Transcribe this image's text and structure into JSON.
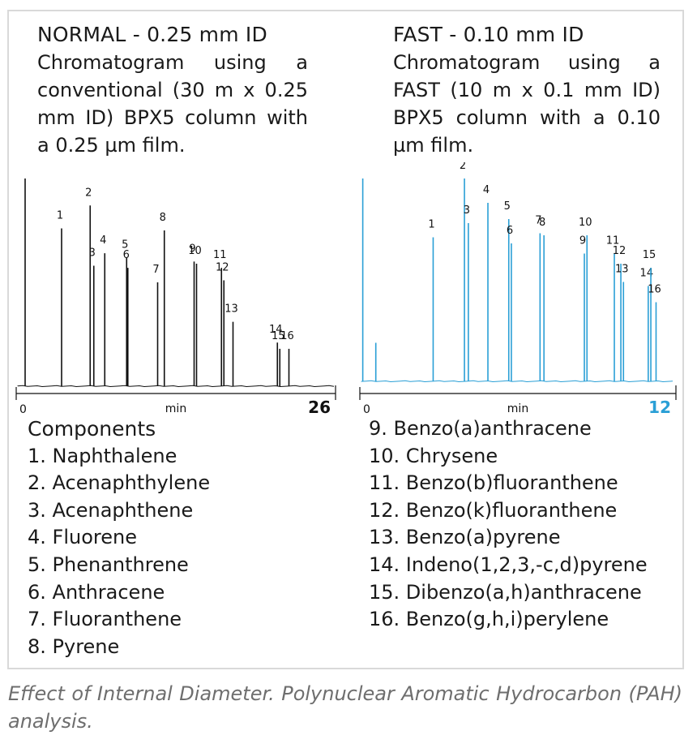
{
  "left_panel": {
    "title": "NORMAL - 0.25 mm ID",
    "description": "Chromatogram using a conventional (30 m x 0.25 mm ID) BPX5 column with a 0.25 µm film.",
    "legend_heading": "Components",
    "legend_items": [
      "1. Naphthalene",
      "2. Acenaphthylene",
      "3. Acenaphthene",
      "4. Fluorene",
      "5. Phenanthrene",
      "6. Anthracene",
      "7. Fluoranthene",
      "8. Pyrene"
    ]
  },
  "right_panel": {
    "title": "FAST - 0.10 mm ID",
    "description": "Chromatogram using a FAST (10 m x 0.1 mm ID) BPX5 column with a 0.10 µm film.",
    "legend_items": [
      "9. Benzo(a)anthracene",
      "10. Chrysene",
      "11. Benzo(b)fluoranthene",
      "12. Benzo(k)fluoranthene",
      "13. Benzo(a)pyrene",
      "14. Indeno(1,2,3,-c,d)pyrene",
      "15. Dibenzo(a,h)anthracene",
      "16. Benzo(g,h,i)perylene"
    ]
  },
  "caption": "Effect of Internal Diameter. Polynuclear Aromatic Hydrocarbon (PAH) analysis.",
  "chart_data": [
    {
      "type": "line",
      "title": "NORMAL - 0.25 mm ID",
      "xlabel": "min",
      "xlim": [
        0,
        26
      ],
      "x_tick_labels": [
        "0",
        "26"
      ],
      "ylim": [
        0,
        100
      ],
      "color": "#111111",
      "end_label_color": "#111111",
      "peaks": [
        {
          "rt": 0.6,
          "height": 100,
          "label": ""
        },
        {
          "rt": 3.6,
          "height": 76,
          "label": "1"
        },
        {
          "rt": 5.95,
          "height": 87,
          "label": "2"
        },
        {
          "rt": 6.25,
          "height": 58,
          "label": "3"
        },
        {
          "rt": 7.15,
          "height": 64,
          "label": "4"
        },
        {
          "rt": 8.95,
          "height": 62,
          "label": "5"
        },
        {
          "rt": 9.05,
          "height": 57,
          "label": "6"
        },
        {
          "rt": 11.5,
          "height": 50,
          "label": "7"
        },
        {
          "rt": 12.05,
          "height": 75,
          "label": "8"
        },
        {
          "rt": 14.5,
          "height": 60,
          "label": "9"
        },
        {
          "rt": 14.7,
          "height": 59,
          "label": "10"
        },
        {
          "rt": 16.75,
          "height": 57,
          "label": "11"
        },
        {
          "rt": 16.95,
          "height": 51,
          "label": "12"
        },
        {
          "rt": 17.7,
          "height": 31,
          "label": "13"
        },
        {
          "rt": 21.35,
          "height": 21,
          "label": "14"
        },
        {
          "rt": 21.55,
          "height": 18,
          "label": "15"
        },
        {
          "rt": 22.3,
          "height": 18,
          "label": "16"
        }
      ]
    },
    {
      "type": "line",
      "title": "FAST - 0.10 mm ID",
      "xlabel": "min",
      "xlim": [
        0,
        12
      ],
      "x_tick_labels": [
        "0",
        "12"
      ],
      "ylim": [
        0,
        100
      ],
      "color": "#2a9fd6",
      "end_label_color": "#2a9fd6",
      "peaks": [
        {
          "rt": 0.05,
          "height": 100,
          "label": ""
        },
        {
          "rt": 0.55,
          "height": 19,
          "label": ""
        },
        {
          "rt": 2.75,
          "height": 71,
          "label": "1"
        },
        {
          "rt": 3.95,
          "height": 100,
          "label": "2"
        },
        {
          "rt": 4.1,
          "height": 78,
          "label": "3"
        },
        {
          "rt": 4.85,
          "height": 88,
          "label": "4"
        },
        {
          "rt": 5.65,
          "height": 80,
          "label": "5"
        },
        {
          "rt": 5.75,
          "height": 68,
          "label": "6"
        },
        {
          "rt": 6.85,
          "height": 73,
          "label": "7"
        },
        {
          "rt": 7.0,
          "height": 72,
          "label": "8"
        },
        {
          "rt": 8.55,
          "height": 63,
          "label": "9"
        },
        {
          "rt": 8.65,
          "height": 72,
          "label": "10"
        },
        {
          "rt": 9.7,
          "height": 63,
          "label": "11"
        },
        {
          "rt": 9.95,
          "height": 58,
          "label": "12"
        },
        {
          "rt": 10.05,
          "height": 49,
          "label": "13"
        },
        {
          "rt": 11.0,
          "height": 47,
          "label": "14"
        },
        {
          "rt": 11.1,
          "height": 56,
          "label": "15"
        },
        {
          "rt": 11.3,
          "height": 39,
          "label": "16"
        }
      ]
    }
  ]
}
